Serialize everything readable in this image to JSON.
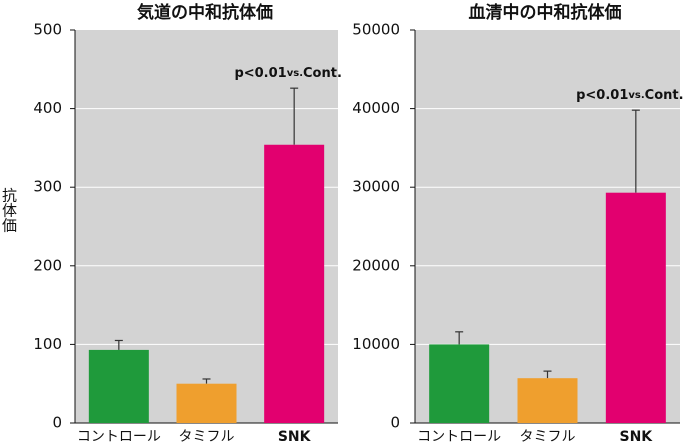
{
  "chart_data": [
    {
      "type": "bar",
      "title": "気道の中和抗体価",
      "y_label": "抗体価",
      "categories": [
        "コントロール",
        "タミフル",
        "SNK"
      ],
      "values": [
        93,
        50,
        354
      ],
      "errors": [
        12,
        6,
        72
      ],
      "colors": [
        "#1f9a3b",
        "#ef9f2e",
        "#e2006f"
      ],
      "ylim": [
        0,
        500
      ],
      "yticks": [
        0,
        100,
        200,
        300,
        400,
        500
      ],
      "annotation": [
        "p<0.01",
        "vs.",
        "Cont."
      ]
    },
    {
      "type": "bar",
      "title": "血清中の中和抗体価",
      "categories": [
        "コントロール",
        "タミフル",
        "SNK"
      ],
      "values": [
        10000,
        5700,
        29300
      ],
      "errors": [
        1600,
        900,
        10500
      ],
      "colors": [
        "#1f9a3b",
        "#ef9f2e",
        "#e2006f"
      ],
      "ylim": [
        0,
        50000
      ],
      "yticks": [
        0,
        10000,
        20000,
        30000,
        40000,
        50000
      ],
      "annotation": [
        "p<0.01",
        "vs.",
        "Cont."
      ]
    }
  ]
}
